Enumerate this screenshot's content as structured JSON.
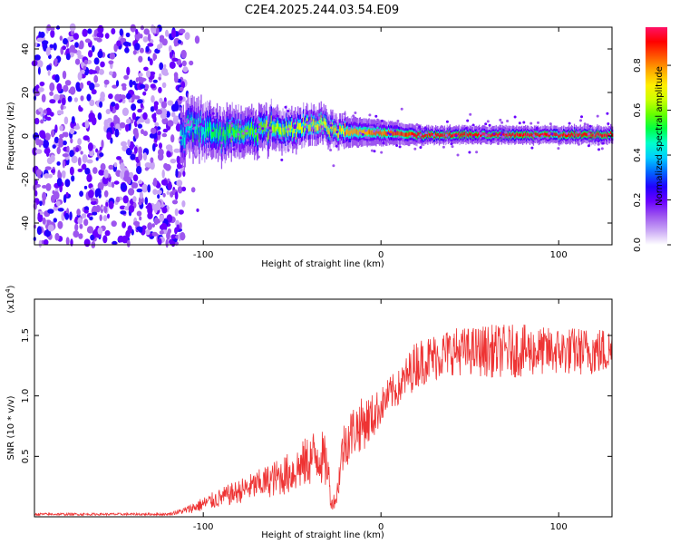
{
  "figure_title": "C2E4.2025.244.03.54.E09",
  "chart_data": [
    {
      "type": "heatmap",
      "title": "C2E4.2025.244.03.54.E09",
      "xlabel": "Height of straight line (km)",
      "ylabel": "Frequency (Hz)",
      "xlim": [
        -195,
        130
      ],
      "ylim": [
        -50,
        50
      ],
      "xticks": [
        -100,
        0,
        100
      ],
      "yticks": [
        -40,
        -20,
        0,
        20,
        40
      ],
      "description_values": {
        "noise_region_x": [
          -195,
          -110
        ],
        "signal_start_x": -113,
        "band_center_hz": [
          {
            "x": -110,
            "f": 4
          },
          {
            "x": -90,
            "f": 1
          },
          {
            "x": -70,
            "f": 3
          },
          {
            "x": -50,
            "f": 3
          },
          {
            "x": -35,
            "f": 5
          },
          {
            "x": -20,
            "f": 2
          },
          {
            "x": 0,
            "f": 1.5
          },
          {
            "x": 20,
            "f": 0.5
          },
          {
            "x": 60,
            "f": 0.5
          },
          {
            "x": 100,
            "f": 0.5
          },
          {
            "x": 130,
            "f": 0.5
          }
        ]
      },
      "colorbar": {
        "label": "Normalized spectral amplitude",
        "ticks": [
          "0.0",
          "0.2",
          "0.4",
          "0.6",
          "0.8"
        ],
        "range": [
          0,
          0.97
        ],
        "colors": [
          "#ffffff",
          "#c9a6f5",
          "#9d55ef",
          "#6a00ff",
          "#2200ff",
          "#0066ff",
          "#00ccff",
          "#00ffcc",
          "#00ff44",
          "#66ff00",
          "#ccff00",
          "#ffee00",
          "#ffaa00",
          "#ff5500",
          "#ff0000",
          "#ff1166"
        ]
      }
    },
    {
      "type": "line",
      "xlabel": "Height of straight line (km)",
      "ylabel": "SNR (10 * v/v)",
      "scale_label": "(x10",
      "scale_exp": "4",
      "scale_close": ")",
      "xlim": [
        -195,
        130
      ],
      "ylim": [
        0,
        1.8
      ],
      "xticks": [
        -100,
        0,
        100
      ],
      "yticks": [
        0.5,
        1.0,
        1.5
      ],
      "ytick_labels": [
        "0.5",
        "1.0",
        "1.5"
      ],
      "series": [
        {
          "name": "SNR",
          "color": "#ee3333",
          "x": [
            -195,
            -150,
            -120,
            -110,
            -100,
            -90,
            -80,
            -70,
            -60,
            -50,
            -45,
            -40,
            -35,
            -30,
            -28,
            -25,
            -22,
            -20,
            -15,
            -10,
            -5,
            0,
            5,
            10,
            15,
            20,
            30,
            40,
            50,
            60,
            70,
            80,
            90,
            100,
            110,
            120,
            130
          ],
          "y": [
            0.02,
            0.02,
            0.02,
            0.05,
            0.1,
            0.15,
            0.2,
            0.25,
            0.3,
            0.35,
            0.4,
            0.45,
            0.5,
            0.4,
            0.1,
            0.15,
            0.5,
            0.6,
            0.7,
            0.75,
            0.8,
            0.9,
            1.0,
            1.05,
            1.15,
            1.25,
            1.3,
            1.35,
            1.35,
            1.35,
            1.35,
            1.35,
            1.35,
            1.35,
            1.35,
            1.35,
            1.35
          ],
          "noise": [
            0.01,
            0.01,
            0.01,
            0.03,
            0.06,
            0.08,
            0.1,
            0.12,
            0.15,
            0.18,
            0.2,
            0.22,
            0.25,
            0.2,
            0.05,
            0.08,
            0.2,
            0.22,
            0.22,
            0.22,
            0.2,
            0.15,
            0.15,
            0.15,
            0.18,
            0.2,
            0.2,
            0.2,
            0.2,
            0.22,
            0.22,
            0.22,
            0.2,
            0.2,
            0.2,
            0.2,
            0.2
          ]
        }
      ]
    }
  ]
}
